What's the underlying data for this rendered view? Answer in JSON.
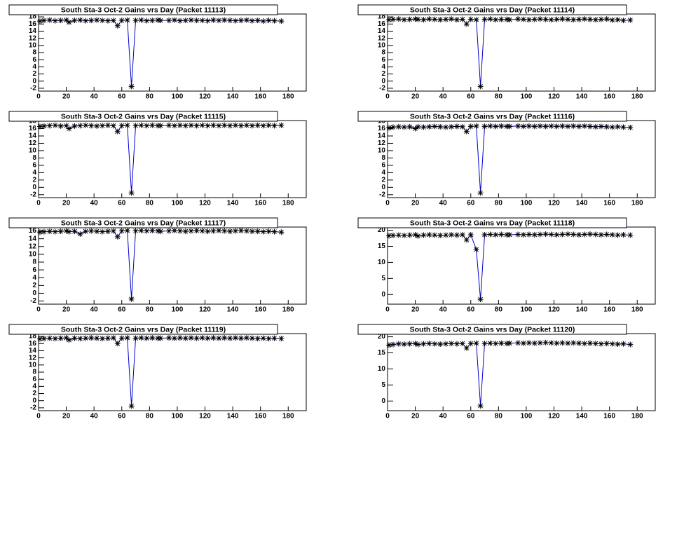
{
  "chart_data": [
    {
      "type": "scatter",
      "title": "South Sta-3 Oct-2 Gains vrs Day (Packet 11113)",
      "marker_color": "#000000",
      "line_color": "#0000cc",
      "x": [
        1,
        4,
        8,
        12,
        16,
        20,
        22,
        26,
        30,
        34,
        38,
        42,
        46,
        50,
        54,
        57,
        60,
        64,
        67,
        70,
        74,
        78,
        82,
        86,
        88,
        94,
        98,
        102,
        106,
        110,
        114,
        118,
        122,
        126,
        130,
        134,
        138,
        142,
        146,
        150,
        154,
        158,
        162,
        166,
        170,
        175
      ],
      "values": [
        16.8,
        17.0,
        17.1,
        16.9,
        17.0,
        17.1,
        16.5,
        17.0,
        17.1,
        16.9,
        17.0,
        17.1,
        17.0,
        16.9,
        17.0,
        15.5,
        17.0,
        17.1,
        -1.5,
        17.0,
        17.1,
        16.9,
        17.0,
        17.1,
        17.0,
        17.0,
        17.1,
        16.9,
        17.0,
        17.1,
        17.0,
        17.0,
        16.9,
        17.1,
        17.0,
        17.1,
        17.0,
        16.9,
        17.0,
        17.1,
        16.9,
        17.0,
        16.8,
        17.0,
        16.9,
        16.8
      ],
      "xlim": [
        0,
        193
      ],
      "xticks": [
        0,
        20,
        40,
        60,
        80,
        100,
        120,
        140,
        160,
        180
      ],
      "ylim": [
        -2.8,
        18.8
      ],
      "yticks": [
        -2,
        0,
        2,
        4,
        6,
        8,
        10,
        12,
        14,
        16,
        18
      ]
    },
    {
      "type": "scatter",
      "title": "South Sta-3 Oct-2 Gains vrs Day (Packet 11114)",
      "marker_color": "#000000",
      "line_color": "#0000cc",
      "x": [
        1,
        4,
        8,
        12,
        16,
        20,
        22,
        26,
        30,
        34,
        38,
        42,
        46,
        50,
        54,
        57,
        60,
        64,
        67,
        70,
        74,
        78,
        82,
        86,
        88,
        94,
        98,
        102,
        106,
        110,
        114,
        118,
        122,
        126,
        130,
        134,
        138,
        142,
        146,
        150,
        154,
        158,
        162,
        166,
        170,
        175
      ],
      "values": [
        17.2,
        17.3,
        17.4,
        17.2,
        17.3,
        17.4,
        17.3,
        17.2,
        17.4,
        17.3,
        17.2,
        17.3,
        17.4,
        17.2,
        17.3,
        16.0,
        17.3,
        17.2,
        -1.5,
        17.3,
        17.4,
        17.2,
        17.3,
        17.3,
        17.2,
        17.4,
        17.3,
        17.2,
        17.3,
        17.4,
        17.3,
        17.2,
        17.3,
        17.4,
        17.3,
        17.2,
        17.3,
        17.4,
        17.3,
        17.2,
        17.3,
        17.4,
        17.1,
        17.2,
        17.0,
        17.1
      ],
      "xlim": [
        0,
        193
      ],
      "xticks": [
        0,
        20,
        40,
        60,
        80,
        100,
        120,
        140,
        160,
        180
      ],
      "ylim": [
        -2.8,
        18.8
      ],
      "yticks": [
        -2,
        0,
        2,
        4,
        6,
        8,
        10,
        12,
        14,
        16,
        18
      ]
    },
    {
      "type": "scatter",
      "title": "South Sta-3 Oct-2 Gains vrs Day (Packet 11115)",
      "marker_color": "#000000",
      "line_color": "#0000cc",
      "x": [
        1,
        4,
        8,
        12,
        16,
        20,
        22,
        26,
        30,
        34,
        38,
        42,
        46,
        50,
        54,
        57,
        60,
        64,
        67,
        70,
        74,
        78,
        82,
        86,
        88,
        94,
        98,
        102,
        106,
        110,
        114,
        118,
        122,
        126,
        130,
        134,
        138,
        142,
        146,
        150,
        154,
        158,
        162,
        166,
        170,
        175
      ],
      "values": [
        16.6,
        16.7,
        16.8,
        16.9,
        16.7,
        16.8,
        16.0,
        16.7,
        16.8,
        16.9,
        16.8,
        16.7,
        16.8,
        16.9,
        16.8,
        15.2,
        16.8,
        16.9,
        -1.5,
        16.8,
        16.9,
        16.8,
        16.9,
        16.8,
        16.8,
        16.9,
        16.8,
        16.9,
        16.8,
        16.9,
        16.8,
        16.9,
        16.8,
        16.9,
        16.8,
        16.9,
        16.8,
        16.9,
        16.8,
        16.9,
        16.8,
        16.9,
        16.8,
        16.9,
        16.8,
        16.9
      ],
      "xlim": [
        0,
        193
      ],
      "xticks": [
        0,
        20,
        40,
        60,
        80,
        100,
        120,
        140,
        160,
        180
      ],
      "ylim": [
        -2.8,
        18.2
      ],
      "yticks": [
        -2,
        0,
        2,
        4,
        6,
        8,
        10,
        12,
        14,
        16,
        18
      ]
    },
    {
      "type": "scatter",
      "title": "South Sta-3 Oct-2 Gains vrs Day (Packet 11116)",
      "marker_color": "#000000",
      "line_color": "#0000cc",
      "x": [
        1,
        4,
        8,
        12,
        16,
        20,
        22,
        26,
        30,
        34,
        38,
        42,
        46,
        50,
        54,
        57,
        60,
        64,
        67,
        70,
        74,
        78,
        82,
        86,
        88,
        94,
        98,
        102,
        106,
        110,
        114,
        118,
        122,
        126,
        130,
        134,
        138,
        142,
        146,
        150,
        154,
        158,
        162,
        166,
        170,
        175
      ],
      "values": [
        16.2,
        16.4,
        16.5,
        16.4,
        16.5,
        16.0,
        16.5,
        16.4,
        16.5,
        16.6,
        16.5,
        16.4,
        16.5,
        16.6,
        16.5,
        15.2,
        16.6,
        16.7,
        -1.5,
        16.6,
        16.7,
        16.6,
        16.7,
        16.6,
        16.6,
        16.7,
        16.6,
        16.7,
        16.6,
        16.7,
        16.6,
        16.7,
        16.6,
        16.7,
        16.6,
        16.7,
        16.6,
        16.7,
        16.6,
        16.5,
        16.6,
        16.5,
        16.4,
        16.5,
        16.4,
        16.3
      ],
      "xlim": [
        0,
        193
      ],
      "xticks": [
        0,
        20,
        40,
        60,
        80,
        100,
        120,
        140,
        160,
        180
      ],
      "ylim": [
        -2.8,
        18.2
      ],
      "yticks": [
        -2,
        0,
        2,
        4,
        6,
        8,
        10,
        12,
        14,
        16,
        18
      ]
    },
    {
      "type": "scatter",
      "title": "South Sta-3 Oct-2 Gains vrs Day (Packet 11117)",
      "marker_color": "#000000",
      "line_color": "#0000cc",
      "x": [
        1,
        4,
        8,
        12,
        16,
        20,
        22,
        26,
        30,
        34,
        38,
        42,
        46,
        50,
        54,
        57,
        60,
        64,
        67,
        70,
        74,
        78,
        82,
        86,
        88,
        94,
        98,
        102,
        106,
        110,
        114,
        118,
        122,
        126,
        130,
        134,
        138,
        142,
        146,
        150,
        154,
        158,
        162,
        166,
        170,
        175
      ],
      "values": [
        15.7,
        15.8,
        15.9,
        15.8,
        15.9,
        16.0,
        15.8,
        15.9,
        15.2,
        15.9,
        16.0,
        15.9,
        15.8,
        15.9,
        16.0,
        14.5,
        16.0,
        16.1,
        -1.5,
        16.0,
        16.1,
        16.0,
        16.1,
        16.0,
        15.9,
        16.0,
        16.1,
        16.0,
        15.9,
        16.0,
        16.1,
        16.0,
        15.9,
        16.0,
        16.1,
        16.0,
        15.9,
        16.0,
        16.1,
        16.0,
        15.9,
        15.9,
        15.8,
        15.9,
        15.8,
        15.7
      ],
      "xlim": [
        0,
        193
      ],
      "xticks": [
        0,
        20,
        40,
        60,
        80,
        100,
        120,
        140,
        160,
        180
      ],
      "ylim": [
        -2.8,
        17.0
      ],
      "yticks": [
        -2,
        0,
        2,
        4,
        6,
        8,
        10,
        12,
        14,
        16
      ]
    },
    {
      "type": "scatter",
      "title": "South Sta-3 Oct-2 Gains vrs Day (Packet 11118)",
      "marker_color": "#000000",
      "line_color": "#0000cc",
      "x": [
        1,
        4,
        8,
        12,
        16,
        20,
        22,
        26,
        30,
        34,
        38,
        42,
        46,
        50,
        54,
        57,
        60,
        64,
        67,
        70,
        74,
        78,
        82,
        86,
        88,
        94,
        98,
        102,
        106,
        110,
        114,
        118,
        122,
        126,
        130,
        134,
        138,
        142,
        146,
        150,
        154,
        158,
        162,
        166,
        170,
        175
      ],
      "values": [
        18.3,
        18.4,
        18.5,
        18.4,
        18.5,
        18.6,
        18.2,
        18.5,
        18.6,
        18.5,
        18.4,
        18.5,
        18.6,
        18.5,
        18.6,
        17.0,
        18.6,
        14.0,
        -1.5,
        18.6,
        18.7,
        18.6,
        18.7,
        18.6,
        18.6,
        18.7,
        18.6,
        18.7,
        18.6,
        18.7,
        18.8,
        18.7,
        18.6,
        18.7,
        18.8,
        18.7,
        18.6,
        18.7,
        18.8,
        18.7,
        18.6,
        18.7,
        18.6,
        18.5,
        18.6,
        18.5
      ],
      "xlim": [
        0,
        193
      ],
      "xticks": [
        0,
        20,
        40,
        60,
        80,
        100,
        120,
        140,
        160,
        180
      ],
      "ylim": [
        -3,
        21
      ],
      "yticks": [
        0,
        5,
        10,
        15,
        20
      ]
    },
    {
      "type": "scatter",
      "title": "South Sta-3 Oct-2 Gains vrs Day (Packet 11119)",
      "marker_color": "#000000",
      "line_color": "#0000cc",
      "x": [
        1,
        4,
        8,
        12,
        16,
        20,
        22,
        26,
        30,
        34,
        38,
        42,
        46,
        50,
        54,
        57,
        60,
        64,
        67,
        70,
        74,
        78,
        82,
        86,
        88,
        94,
        98,
        102,
        106,
        110,
        114,
        118,
        122,
        126,
        130,
        134,
        138,
        142,
        146,
        150,
        154,
        158,
        162,
        166,
        170,
        175
      ],
      "values": [
        17.3,
        17.4,
        17.5,
        17.4,
        17.5,
        17.6,
        17.0,
        17.5,
        17.4,
        17.5,
        17.6,
        17.5,
        17.4,
        17.5,
        17.6,
        16.0,
        17.5,
        17.6,
        -1.5,
        17.5,
        17.6,
        17.5,
        17.6,
        17.5,
        17.5,
        17.6,
        17.5,
        17.6,
        17.5,
        17.6,
        17.5,
        17.6,
        17.5,
        17.6,
        17.5,
        17.6,
        17.5,
        17.6,
        17.5,
        17.6,
        17.5,
        17.4,
        17.5,
        17.4,
        17.5,
        17.4
      ],
      "xlim": [
        0,
        193
      ],
      "xticks": [
        0,
        20,
        40,
        60,
        80,
        100,
        120,
        140,
        160,
        180
      ],
      "ylim": [
        -2.8,
        18.8
      ],
      "yticks": [
        -2,
        0,
        2,
        4,
        6,
        8,
        10,
        12,
        14,
        16,
        18
      ]
    },
    {
      "type": "scatter",
      "title": "South Sta-3 Oct-2 Gains vrs Day (Packet 11120)",
      "marker_color": "#000000",
      "line_color": "#0000cc",
      "x": [
        1,
        4,
        8,
        12,
        16,
        20,
        22,
        26,
        30,
        34,
        38,
        42,
        46,
        50,
        54,
        57,
        60,
        64,
        67,
        70,
        74,
        78,
        82,
        86,
        88,
        94,
        98,
        102,
        106,
        110,
        114,
        118,
        122,
        126,
        130,
        134,
        138,
        142,
        146,
        150,
        154,
        158,
        162,
        166,
        170,
        175
      ],
      "values": [
        17.4,
        17.6,
        17.8,
        17.7,
        17.8,
        17.9,
        17.6,
        17.8,
        17.9,
        17.8,
        17.7,
        17.8,
        17.9,
        17.8,
        17.9,
        16.5,
        17.9,
        18.0,
        -1.5,
        17.9,
        18.0,
        17.9,
        18.0,
        17.9,
        18.0,
        18.1,
        18.0,
        18.1,
        18.0,
        18.1,
        18.2,
        18.1,
        18.0,
        18.1,
        18.0,
        18.1,
        18.0,
        17.9,
        18.0,
        17.9,
        17.8,
        17.9,
        17.8,
        17.7,
        17.8,
        17.6
      ],
      "xlim": [
        0,
        193
      ],
      "xticks": [
        0,
        20,
        40,
        60,
        80,
        100,
        120,
        140,
        160,
        180
      ],
      "ylim": [
        -3,
        21
      ],
      "yticks": [
        0,
        5,
        10,
        15,
        20
      ]
    }
  ]
}
